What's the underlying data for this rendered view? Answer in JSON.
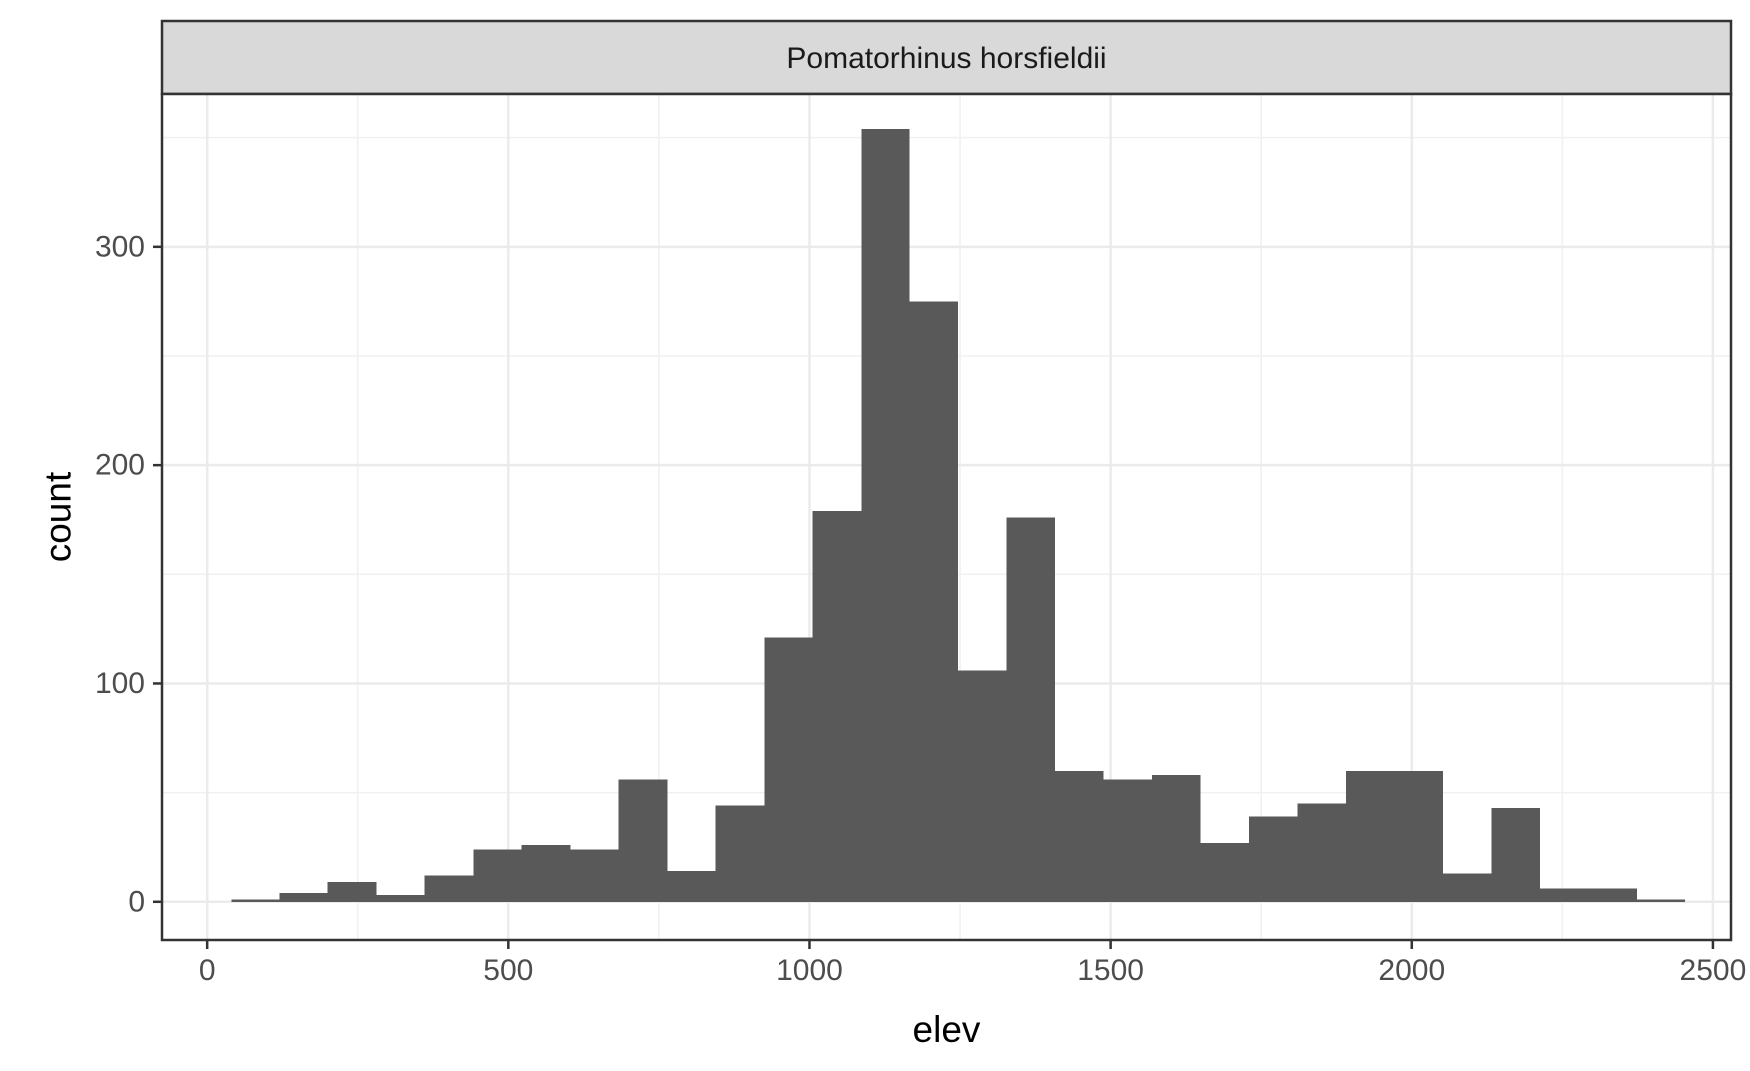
{
  "chart_data": {
    "type": "bar",
    "facet_label": "Pomatorhinus horsfieldii",
    "xlabel": "elev",
    "ylabel": "count",
    "xlim": [
      -75,
      2530
    ],
    "ylim": [
      -17.5,
      370
    ],
    "x_ticks": [
      0,
      500,
      1000,
      1500,
      2000,
      2500
    ],
    "y_ticks": [
      0,
      100,
      200,
      300
    ],
    "bins": [
      {
        "x0": 40,
        "x1": 120,
        "count": 1
      },
      {
        "x0": 120,
        "x1": 200,
        "count": 4
      },
      {
        "x0": 200,
        "x1": 281,
        "count": 9
      },
      {
        "x0": 281,
        "x1": 361,
        "count": 3
      },
      {
        "x0": 361,
        "x1": 442,
        "count": 12
      },
      {
        "x0": 442,
        "x1": 522,
        "count": 24
      },
      {
        "x0": 522,
        "x1": 603,
        "count": 26
      },
      {
        "x0": 603,
        "x1": 683,
        "count": 24
      },
      {
        "x0": 683,
        "x1": 764,
        "count": 56
      },
      {
        "x0": 764,
        "x1": 844,
        "count": 14
      },
      {
        "x0": 844,
        "x1": 925,
        "count": 44
      },
      {
        "x0": 925,
        "x1": 1005,
        "count": 121
      },
      {
        "x0": 1005,
        "x1": 1086,
        "count": 179
      },
      {
        "x0": 1086,
        "x1": 1166,
        "count": 354
      },
      {
        "x0": 1166,
        "x1": 1247,
        "count": 275
      },
      {
        "x0": 1247,
        "x1": 1327,
        "count": 106
      },
      {
        "x0": 1327,
        "x1": 1408,
        "count": 176
      },
      {
        "x0": 1408,
        "x1": 1488,
        "count": 60
      },
      {
        "x0": 1488,
        "x1": 1569,
        "count": 56
      },
      {
        "x0": 1569,
        "x1": 1649,
        "count": 58
      },
      {
        "x0": 1649,
        "x1": 1730,
        "count": 27
      },
      {
        "x0": 1730,
        "x1": 1810,
        "count": 39
      },
      {
        "x0": 1810,
        "x1": 1891,
        "count": 45
      },
      {
        "x0": 1891,
        "x1": 1971,
        "count": 60
      },
      {
        "x0": 1971,
        "x1": 2052,
        "count": 60
      },
      {
        "x0": 2052,
        "x1": 2132,
        "count": 13
      },
      {
        "x0": 2132,
        "x1": 2213,
        "count": 43
      },
      {
        "x0": 2213,
        "x1": 2293,
        "count": 6
      },
      {
        "x0": 2293,
        "x1": 2374,
        "count": 6
      },
      {
        "x0": 2374,
        "x1": 2454,
        "count": 1
      }
    ],
    "bar_color": "#595959",
    "grid": true,
    "theme": "bw"
  }
}
